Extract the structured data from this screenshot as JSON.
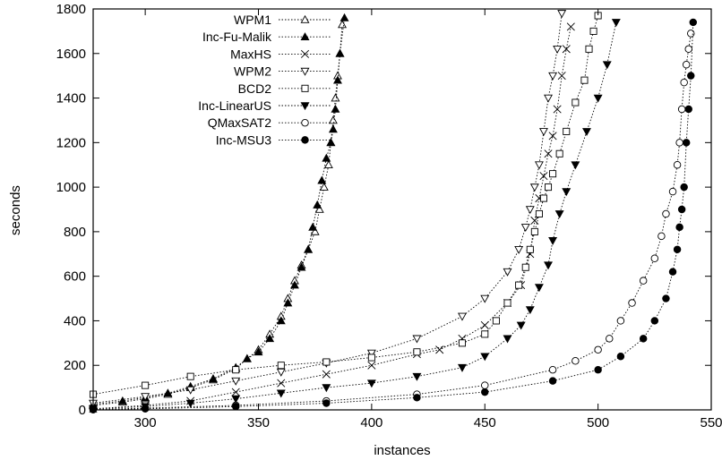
{
  "chart_data": {
    "type": "scatter",
    "title": "",
    "xlabel": "instances",
    "ylabel": "seconds",
    "xlim": [
      277,
      550
    ],
    "ylim": [
      0,
      1800
    ],
    "xticks": [
      300,
      350,
      400,
      450,
      500,
      550
    ],
    "yticks": [
      0,
      200,
      400,
      600,
      800,
      1000,
      1200,
      1400,
      1600,
      1800
    ],
    "grid": false,
    "legend_position": "top-left",
    "series": [
      {
        "name": "WPM1",
        "marker": "triangle-up-open",
        "line": "dotted",
        "points": [
          [
            277,
            20
          ],
          [
            290,
            35
          ],
          [
            300,
            50
          ],
          [
            310,
            70
          ],
          [
            320,
            100
          ],
          [
            330,
            135
          ],
          [
            340,
            185
          ],
          [
            345,
            230
          ],
          [
            350,
            270
          ],
          [
            355,
            340
          ],
          [
            360,
            420
          ],
          [
            363,
            500
          ],
          [
            366,
            580
          ],
          [
            369,
            650
          ],
          [
            372,
            720
          ],
          [
            375,
            800
          ],
          [
            377,
            900
          ],
          [
            379,
            1000
          ],
          [
            381,
            1100
          ],
          [
            382,
            1200
          ],
          [
            383,
            1300
          ],
          [
            384,
            1400
          ],
          [
            385,
            1500
          ],
          [
            386,
            1600
          ],
          [
            387,
            1730
          ]
        ]
      },
      {
        "name": "Inc-Fu-Malik",
        "marker": "triangle-up-filled",
        "line": "dotted",
        "points": [
          [
            277,
            25
          ],
          [
            290,
            40
          ],
          [
            300,
            55
          ],
          [
            310,
            75
          ],
          [
            320,
            105
          ],
          [
            330,
            140
          ],
          [
            340,
            190
          ],
          [
            345,
            230
          ],
          [
            350,
            260
          ],
          [
            355,
            320
          ],
          [
            360,
            400
          ],
          [
            363,
            480
          ],
          [
            366,
            560
          ],
          [
            369,
            640
          ],
          [
            372,
            720
          ],
          [
            374,
            820
          ],
          [
            376,
            920
          ],
          [
            378,
            1030
          ],
          [
            380,
            1130
          ],
          [
            382,
            1200
          ],
          [
            383,
            1260
          ],
          [
            384,
            1350
          ],
          [
            385,
            1480
          ],
          [
            386,
            1600
          ],
          [
            388,
            1760
          ]
        ]
      },
      {
        "name": "MaxHS",
        "marker": "x",
        "line": "dotted",
        "points": [
          [
            277,
            5
          ],
          [
            300,
            20
          ],
          [
            320,
            40
          ],
          [
            340,
            80
          ],
          [
            360,
            120
          ],
          [
            380,
            160
          ],
          [
            400,
            200
          ],
          [
            420,
            250
          ],
          [
            430,
            270
          ],
          [
            440,
            320
          ],
          [
            450,
            380
          ],
          [
            460,
            480
          ],
          [
            466,
            560
          ],
          [
            470,
            700
          ],
          [
            472,
            850
          ],
          [
            474,
            950
          ],
          [
            476,
            1050
          ],
          [
            478,
            1150
          ],
          [
            480,
            1230
          ],
          [
            482,
            1350
          ],
          [
            484,
            1500
          ],
          [
            486,
            1620
          ],
          [
            488,
            1720
          ]
        ]
      },
      {
        "name": "WPM2",
        "marker": "triangle-down-open",
        "line": "dotted",
        "points": [
          [
            277,
            30
          ],
          [
            300,
            60
          ],
          [
            320,
            90
          ],
          [
            340,
            130
          ],
          [
            360,
            170
          ],
          [
            380,
            210
          ],
          [
            400,
            255
          ],
          [
            420,
            320
          ],
          [
            440,
            420
          ],
          [
            450,
            500
          ],
          [
            460,
            620
          ],
          [
            465,
            720
          ],
          [
            468,
            820
          ],
          [
            470,
            900
          ],
          [
            472,
            1000
          ],
          [
            474,
            1100
          ],
          [
            476,
            1250
          ],
          [
            478,
            1400
          ],
          [
            480,
            1500
          ],
          [
            482,
            1620
          ],
          [
            484,
            1780
          ]
        ]
      },
      {
        "name": "BCD2",
        "marker": "square-open",
        "line": "dotted",
        "points": [
          [
            277,
            70
          ],
          [
            300,
            110
          ],
          [
            320,
            150
          ],
          [
            340,
            180
          ],
          [
            360,
            200
          ],
          [
            380,
            215
          ],
          [
            400,
            235
          ],
          [
            420,
            260
          ],
          [
            440,
            300
          ],
          [
            450,
            340
          ],
          [
            455,
            400
          ],
          [
            460,
            480
          ],
          [
            465,
            560
          ],
          [
            468,
            640
          ],
          [
            470,
            720
          ],
          [
            472,
            800
          ],
          [
            474,
            880
          ],
          [
            476,
            950
          ],
          [
            478,
            1000
          ],
          [
            480,
            1060
          ],
          [
            483,
            1150
          ],
          [
            486,
            1250
          ],
          [
            490,
            1380
          ],
          [
            494,
            1480
          ],
          [
            496,
            1620
          ],
          [
            498,
            1700
          ],
          [
            500,
            1770
          ]
        ]
      },
      {
        "name": "Inc-LinearUS",
        "marker": "triangle-down-filled",
        "line": "dotted",
        "points": [
          [
            277,
            5
          ],
          [
            300,
            15
          ],
          [
            320,
            30
          ],
          [
            340,
            50
          ],
          [
            360,
            75
          ],
          [
            380,
            100
          ],
          [
            400,
            120
          ],
          [
            420,
            150
          ],
          [
            440,
            190
          ],
          [
            450,
            240
          ],
          [
            460,
            320
          ],
          [
            466,
            380
          ],
          [
            470,
            450
          ],
          [
            474,
            550
          ],
          [
            478,
            650
          ],
          [
            480,
            760
          ],
          [
            483,
            880
          ],
          [
            486,
            980
          ],
          [
            490,
            1100
          ],
          [
            495,
            1250
          ],
          [
            500,
            1400
          ],
          [
            504,
            1550
          ],
          [
            508,
            1740
          ]
        ]
      },
      {
        "name": "QMaxSAT2",
        "marker": "circle-open",
        "line": "dotted",
        "points": [
          [
            277,
            2
          ],
          [
            300,
            8
          ],
          [
            340,
            20
          ],
          [
            380,
            40
          ],
          [
            420,
            70
          ],
          [
            450,
            110
          ],
          [
            480,
            180
          ],
          [
            490,
            220
          ],
          [
            500,
            270
          ],
          [
            505,
            320
          ],
          [
            510,
            400
          ],
          [
            515,
            480
          ],
          [
            520,
            580
          ],
          [
            525,
            680
          ],
          [
            528,
            780
          ],
          [
            530,
            880
          ],
          [
            533,
            980
          ],
          [
            535,
            1100
          ],
          [
            536,
            1200
          ],
          [
            537,
            1350
          ],
          [
            538,
            1470
          ],
          [
            539,
            1550
          ],
          [
            540,
            1620
          ],
          [
            541,
            1690
          ]
        ]
      },
      {
        "name": "Inc-MSU3",
        "marker": "circle-filled",
        "line": "dotted",
        "points": [
          [
            277,
            1
          ],
          [
            300,
            5
          ],
          [
            340,
            15
          ],
          [
            380,
            30
          ],
          [
            420,
            55
          ],
          [
            450,
            80
          ],
          [
            480,
            130
          ],
          [
            500,
            180
          ],
          [
            510,
            240
          ],
          [
            520,
            320
          ],
          [
            525,
            400
          ],
          [
            530,
            500
          ],
          [
            533,
            620
          ],
          [
            535,
            720
          ],
          [
            536,
            820
          ],
          [
            537,
            900
          ],
          [
            538,
            1000
          ],
          [
            539,
            1200
          ],
          [
            540,
            1350
          ],
          [
            541,
            1500
          ],
          [
            542,
            1740
          ]
        ]
      }
    ]
  }
}
